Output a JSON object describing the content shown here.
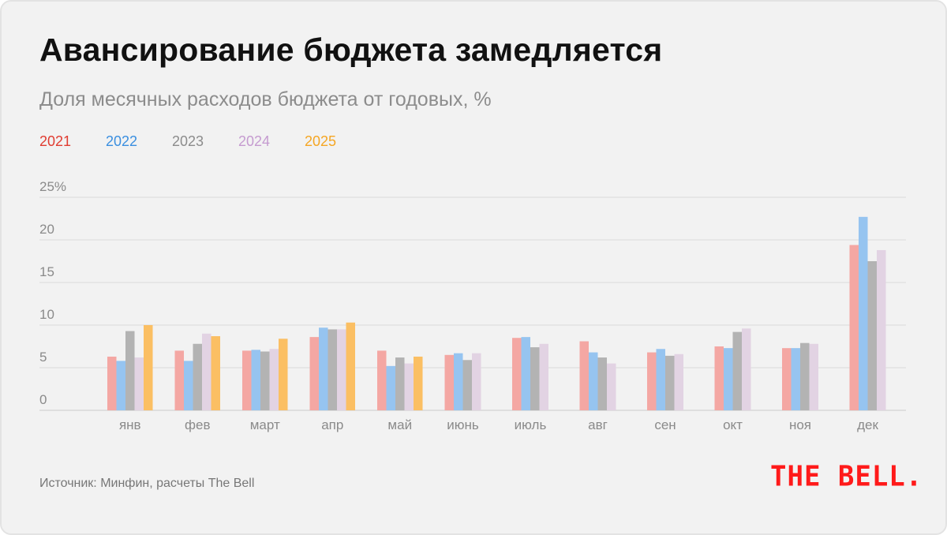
{
  "title": "Авансирование бюджета замедляется",
  "subtitle": "Доля месячных расходов бюджета от годовых, %",
  "source": "Источник: Минфин, расчеты The Bell",
  "logo_text": "THE BELL.",
  "chart_data": {
    "type": "bar",
    "categories": [
      "янв",
      "фев",
      "март",
      "апр",
      "май",
      "июнь",
      "июль",
      "авг",
      "сен",
      "окт",
      "ноя",
      "дек"
    ],
    "ylim": [
      0,
      25
    ],
    "ytick_labels": [
      "0",
      "5",
      "10",
      "15",
      "20",
      "25%"
    ],
    "grid": true,
    "legend_position": "top-left",
    "series": [
      {
        "name": "2021",
        "color": "#f4a7a3",
        "legend_color": "#e03c31",
        "values": [
          6.3,
          7.0,
          7.0,
          8.6,
          7.0,
          6.5,
          8.5,
          8.1,
          6.8,
          7.5,
          7.3,
          19.4
        ]
      },
      {
        "name": "2022",
        "color": "#96c4f0",
        "legend_color": "#3b8fe0",
        "values": [
          5.8,
          5.8,
          7.1,
          9.7,
          5.2,
          6.7,
          8.6,
          6.8,
          7.2,
          7.3,
          7.3,
          22.7
        ]
      },
      {
        "name": "2023",
        "color": "#b3b3b3",
        "legend_color": "#8c8c8c",
        "values": [
          9.3,
          7.8,
          6.9,
          9.5,
          6.2,
          5.9,
          7.4,
          6.2,
          6.4,
          9.2,
          7.9,
          17.5
        ]
      },
      {
        "name": "2024",
        "color": "#e2d3e3",
        "legend_color": "#c59bd0",
        "values": [
          6.2,
          9.0,
          7.2,
          9.5,
          5.5,
          6.7,
          7.8,
          5.5,
          6.6,
          9.6,
          7.8,
          18.8
        ]
      },
      {
        "name": "2025",
        "color": "#fbbf63",
        "legend_color": "#f5a623",
        "values": [
          10.0,
          8.7,
          8.4,
          10.3,
          6.3,
          null,
          null,
          null,
          null,
          null,
          null,
          null
        ]
      }
    ]
  }
}
